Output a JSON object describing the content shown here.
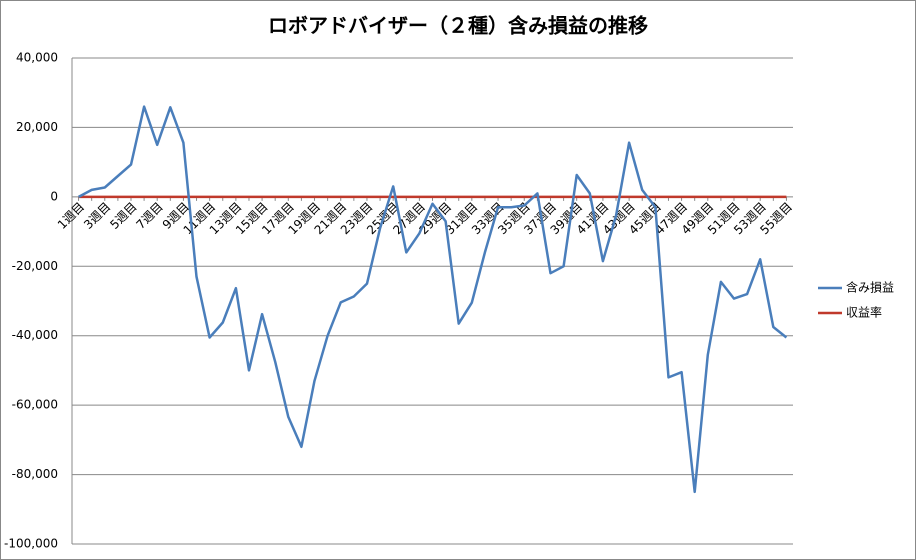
{
  "chart_data": {
    "type": "line",
    "title": "ロボアドバイザー（２種）含み損益の推移",
    "categories": [
      "1週目",
      null,
      "3週目",
      null,
      "5週目",
      null,
      "7週目",
      null,
      "9週目",
      null,
      "11週目",
      null,
      "13週目",
      null,
      "15週目",
      null,
      "17週目",
      null,
      "19週目",
      null,
      "21週目",
      null,
      "23週目",
      null,
      "25週目",
      null,
      "27週目",
      null,
      "29週目",
      null,
      "31週目",
      null,
      "33週目",
      null,
      "35週目",
      null,
      "37週目",
      null,
      "39週目",
      null,
      "41週目",
      null,
      "43週目",
      null,
      "45週目",
      null,
      "47週目",
      null,
      "49週目",
      null,
      "51週目",
      null,
      "53週目",
      null,
      "55週目"
    ],
    "series": [
      {
        "name": "含み損益",
        "color": "#4a7ebb",
        "values": [
          0,
          2000,
          2700,
          6000,
          9300,
          26000,
          15000,
          25800,
          15600,
          -23000,
          -40500,
          -36200,
          -26300,
          -50000,
          -33800,
          -47500,
          -63400,
          -72000,
          -53000,
          -40000,
          -30400,
          -28700,
          -25000,
          -9000,
          3000,
          -16000,
          -10500,
          -2000,
          -7000,
          -36500,
          -30500,
          -16000,
          -3000,
          -3000,
          -2500,
          1000,
          -22000,
          -20000,
          6300,
          1000,
          -18500,
          -5500,
          15600,
          2000,
          -3000,
          -52000,
          -50500,
          -85000,
          -45500,
          -24500,
          -29300,
          -28000,
          -18000,
          -37500,
          -40500
        ]
      },
      {
        "name": "収益率",
        "color": "#c0392b",
        "values": [
          0,
          0,
          0,
          0,
          0,
          0,
          0,
          0,
          0,
          0,
          0,
          0,
          0,
          0,
          0,
          0,
          0,
          0,
          0,
          0,
          0,
          0,
          0,
          0,
          0,
          0,
          0,
          0,
          0,
          0,
          0,
          0,
          0,
          0,
          0,
          0,
          0,
          0,
          0,
          0,
          0,
          0,
          0,
          0,
          0,
          0,
          0,
          0,
          0,
          0,
          0,
          0,
          0,
          0,
          0
        ]
      }
    ],
    "ylim": [
      -100000,
      40000
    ],
    "yticks": [
      {
        "value": -100000,
        "label": "-100,000"
      },
      {
        "value": -80000,
        "label": "-80,000"
      },
      {
        "value": -60000,
        "label": "-60,000"
      },
      {
        "value": -40000,
        "label": "-40,000"
      },
      {
        "value": -20000,
        "label": "-20,000"
      },
      0,
      {
        "value": 20000,
        "label": "20,000"
      },
      {
        "value": 40000,
        "label": "40,000"
      }
    ],
    "grid": true,
    "legend": "right"
  }
}
